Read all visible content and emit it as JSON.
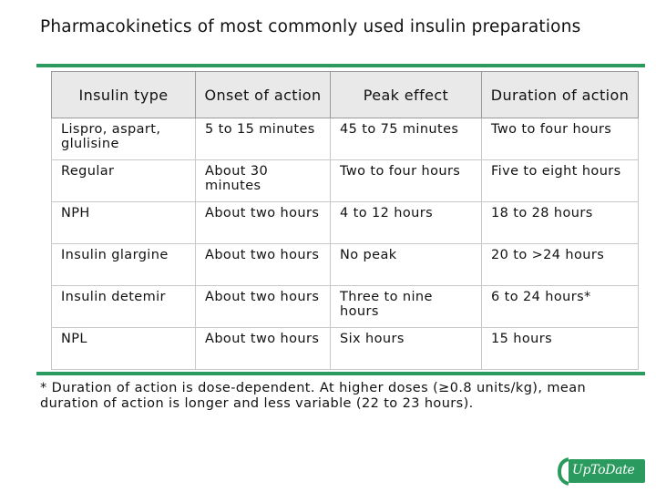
{
  "title": "Pharmacokinetics of most commonly used insulin preparations",
  "colors": {
    "accent": "#2b9a5e",
    "header_bg": "#e9e9e9"
  },
  "table": {
    "headers": [
      "Insulin type",
      "Onset of action",
      "Peak effect",
      "Duration of action"
    ],
    "rows": [
      [
        "Lispro, aspart, glulisine",
        "5 to 15 minutes",
        "45 to 75 minutes",
        "Two to four hours"
      ],
      [
        "Regular",
        "About 30 minutes",
        "Two to four hours",
        "Five to eight hours"
      ],
      [
        "NPH",
        "About two hours",
        "4 to 12 hours",
        "18 to 28 hours"
      ],
      [
        "Insulin glargine",
        "About two hours",
        "No peak",
        "20 to >24 hours"
      ],
      [
        "Insulin detemir",
        "About two hours",
        "Three to nine hours",
        "6 to 24 hours*"
      ],
      [
        "NPL",
        "About two hours",
        "Six hours",
        "15 hours"
      ]
    ]
  },
  "footnote": "* Duration of action is dose-dependent. At higher doses (≥0.8 units/kg), mean duration of action is longer and less variable (22 to 23 hours).",
  "logo": {
    "text": "UpToDate",
    "icon": "uptodate-logo-icon"
  }
}
